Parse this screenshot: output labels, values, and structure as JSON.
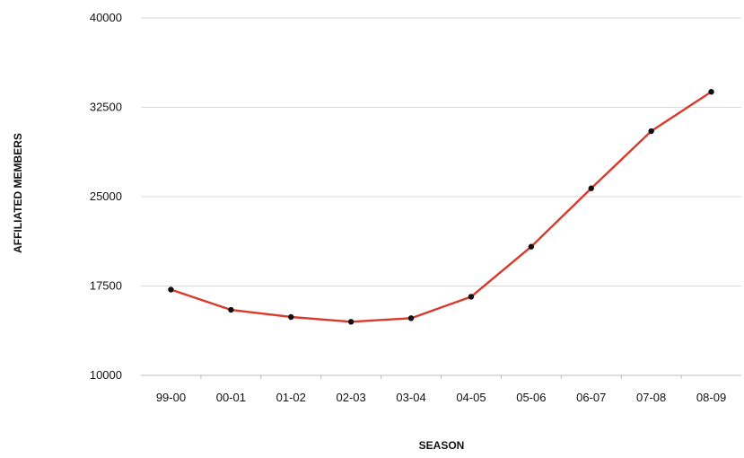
{
  "chart_data": {
    "type": "line",
    "title": "",
    "xlabel": "SEASON",
    "ylabel": "AFFILIATED MEMBERS",
    "categories": [
      "99-00",
      "00-01",
      "01-02",
      "02-03",
      "03-04",
      "04-05",
      "05-06",
      "06-07",
      "07-08",
      "08-09"
    ],
    "series": [
      {
        "name": "",
        "values": [
          17200,
          15500,
          14900,
          14500,
          14800,
          16600,
          20800,
          25700,
          30500,
          33800
        ]
      }
    ],
    "ylim": [
      10000,
      40000
    ],
    "yticks": [
      10000,
      17500,
      25000,
      32500,
      40000
    ],
    "ytick_labels": [
      "10000",
      "17500",
      "25000",
      "32500",
      "40000"
    ],
    "grid": true,
    "legend": "none",
    "colors": {
      "line": "#d93a2b",
      "marker": "#111111",
      "grid": "#d9d9d9"
    }
  }
}
